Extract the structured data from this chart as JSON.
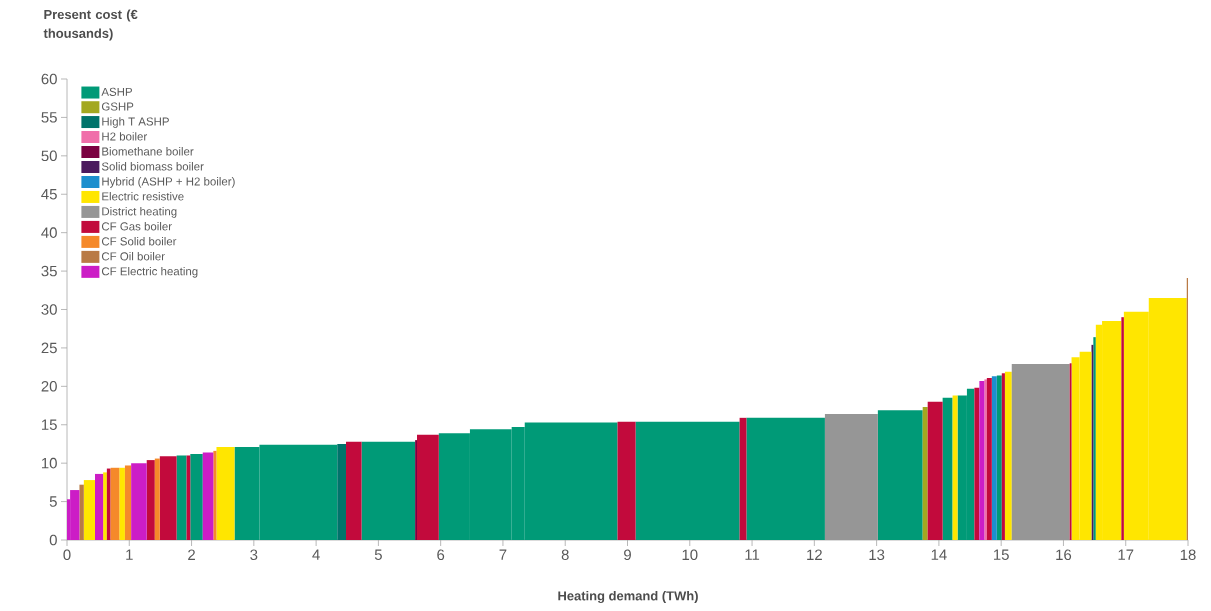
{
  "chart_data": {
    "type": "histogram",
    "xlabel": "Heating demand (TWh)",
    "ylabel": "Present cost (€ thousands)",
    "bins": [
      0,
      0.05,
      0.2,
      0.27,
      0.45,
      0.58,
      0.64,
      0.7,
      0.84,
      0.93,
      1.03,
      1.28,
      1.41,
      1.49,
      1.76,
      1.92,
      1.98,
      2.18,
      2.35,
      2.4,
      2.69,
      3.09,
      4.34,
      4.48,
      4.73,
      5.59,
      5.62,
      5.97,
      6.47,
      7.14,
      7.35,
      8.84,
      9.13,
      10.8,
      10.91,
      12.17,
      13.02,
      13.74,
      13.82,
      14.06,
      14.22,
      14.3,
      14.45,
      14.57,
      14.65,
      14.73,
      14.77,
      14.85,
      14.93,
      15.01,
      15.06,
      15.17,
      16.1,
      16.13,
      16.26,
      16.45,
      16.48,
      16.52,
      16.62,
      16.93,
      16.97,
      17.37,
      17.98,
      18.0
    ],
    "series": [
      {
        "name": "ASHP",
        "color": "#009a77",
        "values": [
          null,
          null,
          null,
          null,
          null,
          null,
          null,
          null,
          null,
          null,
          null,
          null,
          null,
          null,
          11.0,
          null,
          11.2,
          null,
          null,
          null,
          12.1,
          12.4,
          null,
          null,
          12.8,
          null,
          null,
          13.9,
          14.4,
          14.7,
          15.3,
          null,
          15.4,
          null,
          15.9,
          null,
          16.9,
          null,
          null,
          18.5,
          null,
          18.8,
          19.7,
          null,
          null,
          null,
          null,
          null,
          21.4,
          null,
          null,
          null,
          null,
          null,
          null,
          null,
          26.4,
          null,
          null,
          null,
          null,
          null,
          null
        ]
      },
      {
        "name": "GSHP",
        "color": "#a3a820",
        "values": [
          null,
          null,
          null,
          null,
          null,
          null,
          null,
          null,
          null,
          null,
          null,
          null,
          null,
          null,
          null,
          null,
          null,
          null,
          null,
          null,
          null,
          null,
          null,
          null,
          null,
          null,
          null,
          null,
          null,
          null,
          null,
          null,
          null,
          null,
          null,
          null,
          null,
          17.3,
          null,
          null,
          null,
          null,
          null,
          null,
          null,
          null,
          null,
          null,
          null,
          null,
          null,
          null,
          null,
          null,
          null,
          null,
          null,
          null,
          null,
          null,
          null,
          null,
          null
        ]
      },
      {
        "name": "High T ASHP",
        "color": "#00736b",
        "values": [
          null,
          null,
          null,
          null,
          null,
          null,
          null,
          null,
          null,
          null,
          null,
          null,
          null,
          null,
          null,
          null,
          null,
          null,
          null,
          null,
          null,
          null,
          12.5,
          null,
          null,
          null,
          null,
          null,
          null,
          null,
          null,
          null,
          null,
          null,
          null,
          null,
          null,
          null,
          null,
          null,
          null,
          null,
          null,
          null,
          null,
          null,
          null,
          null,
          null,
          null,
          null,
          null,
          null,
          null,
          null,
          null,
          null,
          null,
          null,
          null,
          null,
          null,
          null
        ]
      },
      {
        "name": "H2 boiler",
        "color": "#f06eaa",
        "values": [
          null,
          null,
          null,
          null,
          null,
          null,
          null,
          null,
          null,
          null,
          null,
          null,
          null,
          null,
          null,
          null,
          null,
          null,
          null,
          null,
          null,
          null,
          null,
          null,
          null,
          null,
          null,
          null,
          null,
          null,
          null,
          null,
          null,
          null,
          null,
          null,
          null,
          null,
          null,
          null,
          null,
          null,
          null,
          null,
          null,
          20.9,
          null,
          null,
          null,
          null,
          null,
          null,
          null,
          null,
          null,
          null,
          null,
          null,
          null,
          null,
          null,
          null,
          null
        ]
      },
      {
        "name": "Biomethane boiler",
        "color": "#7b0041",
        "values": [
          null,
          null,
          null,
          null,
          null,
          null,
          null,
          null,
          null,
          null,
          null,
          null,
          null,
          null,
          null,
          null,
          null,
          null,
          null,
          null,
          null,
          null,
          null,
          null,
          null,
          13.0,
          null,
          null,
          null,
          null,
          null,
          null,
          null,
          null,
          null,
          null,
          null,
          null,
          null,
          null,
          null,
          null,
          null,
          null,
          null,
          null,
          null,
          null,
          null,
          null,
          null,
          null,
          null,
          null,
          null,
          null,
          null,
          null,
          null,
          null,
          null,
          null,
          null
        ]
      },
      {
        "name": "Solid biomass boiler",
        "color": "#4b1a5e",
        "values": [
          null,
          null,
          null,
          null,
          null,
          null,
          null,
          null,
          null,
          null,
          null,
          null,
          null,
          null,
          null,
          null,
          null,
          null,
          null,
          null,
          null,
          null,
          null,
          null,
          null,
          null,
          null,
          null,
          null,
          null,
          null,
          null,
          null,
          null,
          null,
          null,
          null,
          null,
          null,
          null,
          null,
          null,
          null,
          null,
          null,
          null,
          null,
          null,
          null,
          null,
          null,
          null,
          null,
          null,
          null,
          25.4,
          null,
          null,
          null,
          null,
          null,
          null,
          null
        ]
      },
      {
        "name": "Hybrid (ASHP + H2 boiler)",
        "color": "#1c8fce",
        "values": [
          null,
          null,
          null,
          null,
          null,
          null,
          null,
          null,
          null,
          null,
          null,
          null,
          null,
          null,
          null,
          null,
          null,
          null,
          null,
          null,
          null,
          null,
          null,
          null,
          null,
          null,
          null,
          null,
          null,
          null,
          null,
          null,
          null,
          null,
          null,
          null,
          null,
          null,
          null,
          null,
          null,
          null,
          null,
          null,
          null,
          null,
          null,
          21.3,
          null,
          null,
          null,
          null,
          null,
          null,
          null,
          null,
          null,
          null,
          null,
          null,
          null,
          null,
          null
        ]
      },
      {
        "name": "Electric resistive",
        "color": "#ffe600",
        "values": [
          null,
          null,
          null,
          7.8,
          null,
          8.8,
          null,
          null,
          9.4,
          null,
          null,
          null,
          null,
          null,
          null,
          null,
          null,
          null,
          null,
          12.1,
          null,
          null,
          null,
          null,
          null,
          null,
          null,
          null,
          null,
          null,
          null,
          null,
          null,
          null,
          null,
          null,
          null,
          null,
          null,
          null,
          18.8,
          null,
          null,
          null,
          null,
          null,
          null,
          null,
          null,
          null,
          21.9,
          null,
          null,
          23.8,
          24.5,
          null,
          null,
          28.0,
          28.5,
          null,
          29.7,
          31.5,
          null
        ]
      },
      {
        "name": "District heating",
        "color": "#969696",
        "values": [
          null,
          null,
          null,
          null,
          null,
          null,
          null,
          null,
          null,
          null,
          null,
          null,
          null,
          null,
          null,
          null,
          null,
          null,
          null,
          null,
          null,
          null,
          null,
          null,
          null,
          null,
          null,
          null,
          null,
          null,
          null,
          null,
          null,
          null,
          null,
          16.4,
          null,
          null,
          null,
          null,
          null,
          null,
          null,
          null,
          null,
          null,
          null,
          null,
          null,
          null,
          null,
          22.9,
          null,
          null,
          null,
          null,
          null,
          null,
          null,
          null,
          null,
          null,
          null
        ]
      },
      {
        "name": "CF Gas boiler",
        "color": "#c20a3c",
        "values": [
          null,
          null,
          null,
          null,
          null,
          null,
          9.3,
          null,
          null,
          null,
          null,
          10.4,
          null,
          10.9,
          null,
          11.0,
          null,
          null,
          null,
          null,
          null,
          null,
          null,
          12.8,
          null,
          null,
          13.7,
          null,
          null,
          null,
          null,
          15.4,
          null,
          15.9,
          null,
          null,
          null,
          null,
          18.0,
          null,
          null,
          null,
          null,
          19.8,
          null,
          null,
          21.1,
          null,
          null,
          21.7,
          null,
          null,
          23.0,
          null,
          null,
          null,
          null,
          null,
          null,
          29.0,
          null,
          null,
          null
        ]
      },
      {
        "name": "CF Solid boiler",
        "color": "#f5892a",
        "values": [
          null,
          null,
          null,
          null,
          null,
          null,
          null,
          9.4,
          null,
          9.7,
          null,
          null,
          10.6,
          null,
          null,
          null,
          null,
          null,
          11.6,
          null,
          null,
          null,
          null,
          null,
          null,
          null,
          null,
          null,
          null,
          null,
          null,
          null,
          null,
          null,
          null,
          null,
          null,
          null,
          null,
          null,
          null,
          null,
          null,
          null,
          null,
          null,
          null,
          null,
          null,
          null,
          null,
          null,
          null,
          null,
          null,
          null,
          null,
          null,
          null,
          null,
          null,
          null,
          null
        ]
      },
      {
        "name": "CF Oil boiler",
        "color": "#b97a45",
        "values": [
          null,
          null,
          7.2,
          null,
          null,
          null,
          null,
          null,
          null,
          null,
          null,
          null,
          null,
          null,
          null,
          null,
          null,
          null,
          null,
          null,
          null,
          null,
          null,
          null,
          null,
          null,
          null,
          null,
          null,
          null,
          null,
          null,
          null,
          null,
          null,
          null,
          null,
          null,
          null,
          null,
          null,
          null,
          null,
          null,
          null,
          null,
          null,
          null,
          null,
          null,
          null,
          null,
          null,
          null,
          null,
          null,
          null,
          null,
          null,
          null,
          null,
          null,
          34.1
        ]
      },
      {
        "name": "CF Electric heating",
        "color": "#cc1dc6",
        "values": [
          5.3,
          6.5,
          null,
          null,
          8.6,
          null,
          null,
          null,
          null,
          null,
          10.0,
          null,
          null,
          null,
          null,
          null,
          null,
          11.4,
          null,
          null,
          null,
          null,
          null,
          null,
          null,
          null,
          null,
          null,
          null,
          null,
          null,
          null,
          null,
          null,
          null,
          null,
          null,
          null,
          null,
          null,
          null,
          null,
          null,
          null,
          20.7,
          null,
          null,
          null,
          null,
          null,
          null,
          null,
          null,
          null,
          null,
          null,
          null,
          null,
          null,
          null,
          null,
          null,
          null
        ]
      }
    ],
    "xlim": [
      0,
      18
    ],
    "xticks": [
      0,
      1,
      2,
      3,
      4,
      5,
      6,
      7,
      8,
      9,
      10,
      11,
      12,
      13,
      14,
      15,
      16,
      17,
      18
    ],
    "ylim": [
      0,
      60
    ],
    "yticks": [
      0,
      5,
      10,
      15,
      20,
      25,
      30,
      35,
      40,
      45,
      50,
      55,
      60
    ],
    "grid": false,
    "legend": "top left"
  }
}
